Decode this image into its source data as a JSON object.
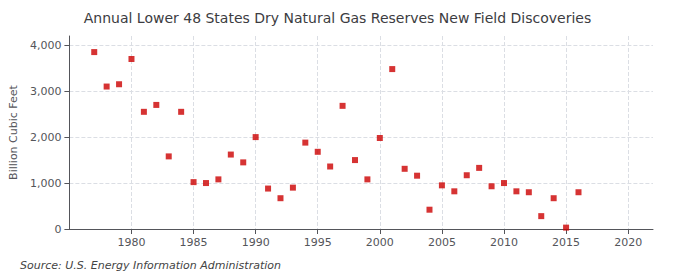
{
  "chart_data": {
    "type": "scatter",
    "title": "Annual Lower 48 States Dry Natural Gas Reserves New Field Discoveries",
    "ylabel": "Billion Cubic Feet",
    "annotations": [
      "Source: U.S. Energy Information Administration"
    ],
    "color": "#cc0000",
    "marker": "square",
    "grid": true,
    "xlim": [
      1975,
      2022
    ],
    "ylim": [
      0,
      4200
    ],
    "xticks": [
      1980,
      1985,
      1990,
      1995,
      2000,
      2005,
      2010,
      2015,
      2020
    ],
    "yticks": [
      0,
      {
        "value": 1000,
        "label": "1,000"
      },
      {
        "value": 2000,
        "label": "2,000"
      },
      {
        "value": 3000,
        "label": "3,000"
      },
      {
        "value": 4000,
        "label": "4,000"
      }
    ],
    "x": [
      1977,
      1978,
      1979,
      1980,
      1981,
      1982,
      1983,
      1984,
      1985,
      1986,
      1987,
      1988,
      1989,
      1990,
      1991,
      1992,
      1993,
      1994,
      1995,
      1996,
      1997,
      1998,
      1999,
      2000,
      2001,
      2002,
      2003,
      2004,
      2005,
      2006,
      2007,
      2008,
      2009,
      2010,
      2011,
      2012,
      2013,
      2014,
      2015,
      2016
    ],
    "values": [
      3850,
      3100,
      3150,
      3700,
      2550,
      2700,
      1580,
      2550,
      1020,
      1000,
      1080,
      1620,
      1450,
      2000,
      880,
      670,
      900,
      1880,
      1680,
      1360,
      2680,
      1500,
      1080,
      1980,
      3480,
      1310,
      1160,
      420,
      950,
      820,
      1170,
      1330,
      930,
      1000,
      820,
      800,
      280,
      670,
      30,
      800
    ]
  }
}
